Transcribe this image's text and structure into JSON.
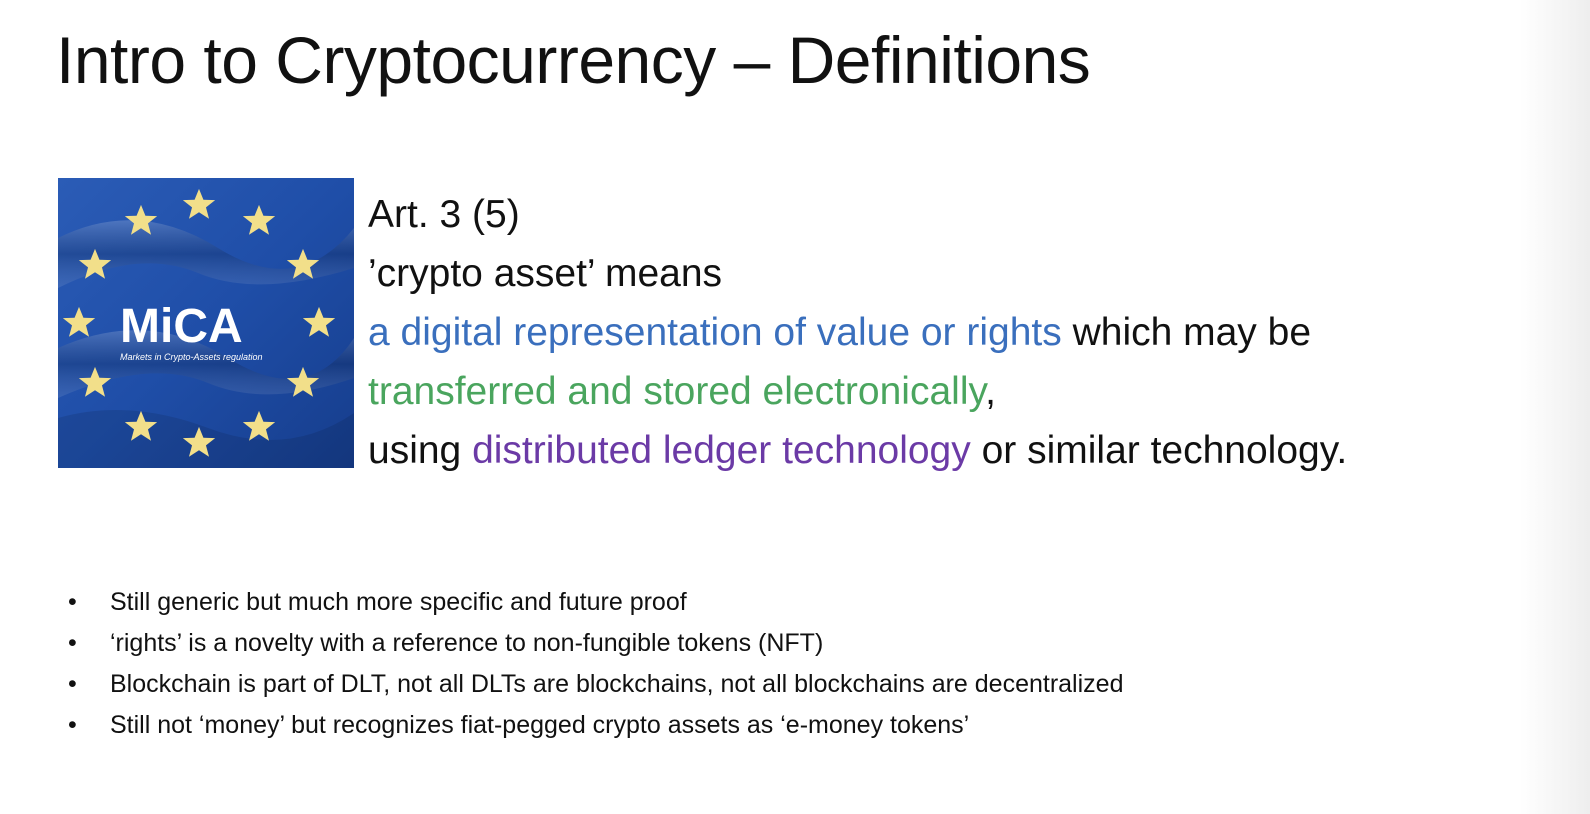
{
  "slide": {
    "title": "Intro to Cryptocurrency – Definitions"
  },
  "image": {
    "logo_text": "MiCA",
    "logo_subtitle": "Markets in Crypto-Assets regulation",
    "icon": "eu-flag-stars-icon",
    "colors": {
      "flag_blue": "#1f4ea8",
      "star_gold": "#f2df8a"
    }
  },
  "definition": {
    "article": "Art. 3 (5)",
    "intro": "’crypto asset’ means",
    "part1_highlight": "a digital representation of value or rights",
    "part1_rest": " which may be",
    "part2_highlight": "transferred and stored electronically",
    "part2_rest": ",",
    "part3_prefix": "using ",
    "part3_highlight": "distributed ledger technology",
    "part3_rest": " or similar technology.",
    "colors": {
      "blue": "#3a6fbd",
      "green": "#4aa55e",
      "purple": "#6b3aa6"
    }
  },
  "bullets": [
    "Still generic but much more specific and future proof",
    "‘rights’ is a novelty with a reference to non-fungible tokens (NFT)",
    "Blockchain is part of DLT, not all DLTs are blockchains, not all blockchains are decentralized",
    "Still not ‘money’ but recognizes fiat-pegged crypto assets as ‘e-money tokens’"
  ]
}
